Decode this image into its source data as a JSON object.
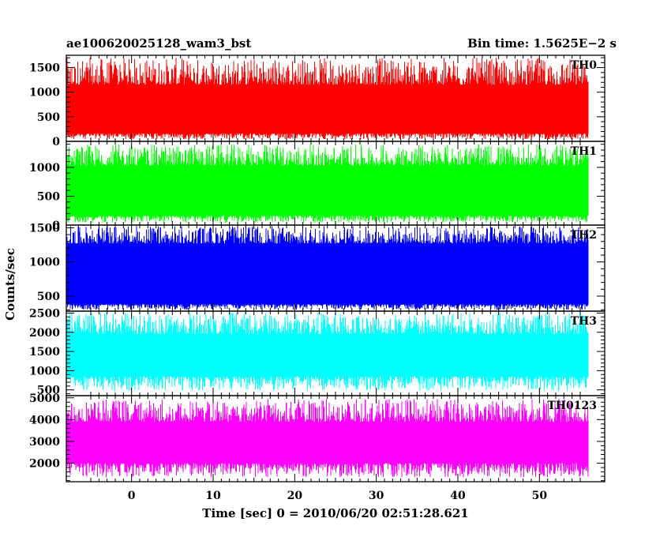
{
  "chart_data": {
    "type": "line",
    "title_left": "ae100620025128_wam3_bst",
    "title_right": "Bin time: 1.5625E−2 s",
    "xlabel": "Time [sec] 0 = 2010/06/20 02:51:28.621",
    "ylabel": "Counts/sec",
    "xlim": [
      -8,
      58
    ],
    "data_x_range": [
      -8,
      56
    ],
    "x_ticks": [
      0,
      10,
      20,
      30,
      40,
      50
    ],
    "grid": false,
    "legend": "none",
    "panels": [
      {
        "name": "TH0",
        "color": "#ff0000",
        "ylim": [
          0,
          1750
        ],
        "y_ticks": [
          0,
          500,
          1000,
          1500
        ],
        "band_low": 160,
        "band_high": 1150,
        "spike_min": 40,
        "spike_max": 1700
      },
      {
        "name": "TH1",
        "color": "#00ff00",
        "ylim": [
          0,
          1450
        ],
        "y_ticks": [
          0,
          500,
          1000
        ],
        "band_low": 160,
        "band_high": 1030,
        "spike_min": 40,
        "spike_max": 1400
      },
      {
        "name": "TH2",
        "color": "#0000ff",
        "ylim": [
          280,
          1540
        ],
        "y_ticks": [
          500,
          1000,
          1500
        ],
        "band_low": 380,
        "band_high": 1270,
        "spike_min": 300,
        "spike_max": 1530
      },
      {
        "name": "TH3",
        "color": "#00ffff",
        "ylim": [
          350,
          2550
        ],
        "y_ticks": [
          500,
          1000,
          1500,
          2000,
          2500
        ],
        "band_low": 850,
        "band_high": 1950,
        "spike_min": 480,
        "spike_max": 2520
      },
      {
        "name": "TH0123",
        "color": "#ff00ff",
        "ylim": [
          1150,
          5100
        ],
        "y_ticks": [
          2000,
          3000,
          4000,
          5000
        ],
        "band_low": 2000,
        "band_high": 3900,
        "spike_min": 1350,
        "spike_max": 4950
      }
    ]
  }
}
